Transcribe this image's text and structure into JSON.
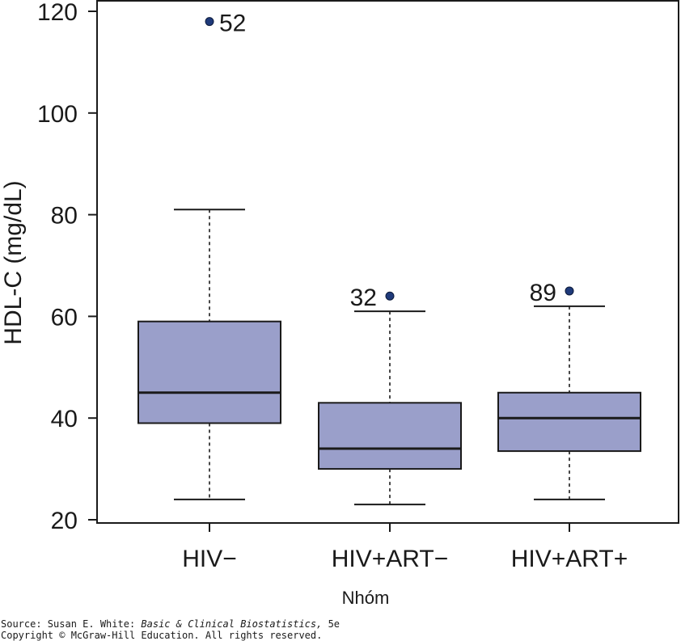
{
  "chart_data": {
    "type": "box",
    "ylabel": "HDL-C (mg/dL)",
    "xlabel": "Nhóm",
    "ylim": [
      20,
      120
    ],
    "yticks": [
      20,
      40,
      60,
      80,
      100,
      120
    ],
    "grid": false,
    "box_color": "#9a9fca",
    "outlier_color": "#1f3a7a",
    "categories": [
      "HIV−",
      "HIV+ART−",
      "HIV+ART+"
    ],
    "boxes": [
      {
        "category": "HIV−",
        "whisker_low": 24,
        "q1": 39,
        "median": 45,
        "q3": 59,
        "whisker_high": 81,
        "outliers": [
          {
            "value": 118,
            "label": "52"
          }
        ]
      },
      {
        "category": "HIV+ART−",
        "whisker_low": 23,
        "q1": 30,
        "median": 34,
        "q3": 43,
        "whisker_high": 61,
        "outliers": [
          {
            "value": 64,
            "label": "32"
          }
        ]
      },
      {
        "category": "HIV+ART+",
        "whisker_low": 24,
        "q1": 33.5,
        "median": 40,
        "q3": 45,
        "whisker_high": 62,
        "outliers": [
          {
            "value": 65,
            "label": "89"
          }
        ]
      }
    ]
  },
  "source": {
    "prefix": "Source: Susan E. White: ",
    "book": "Basic & Clinical Biostatistics,",
    "edition": " 5e",
    "copyright": "Copyright © McGraw-Hill Education. All rights reserved."
  }
}
